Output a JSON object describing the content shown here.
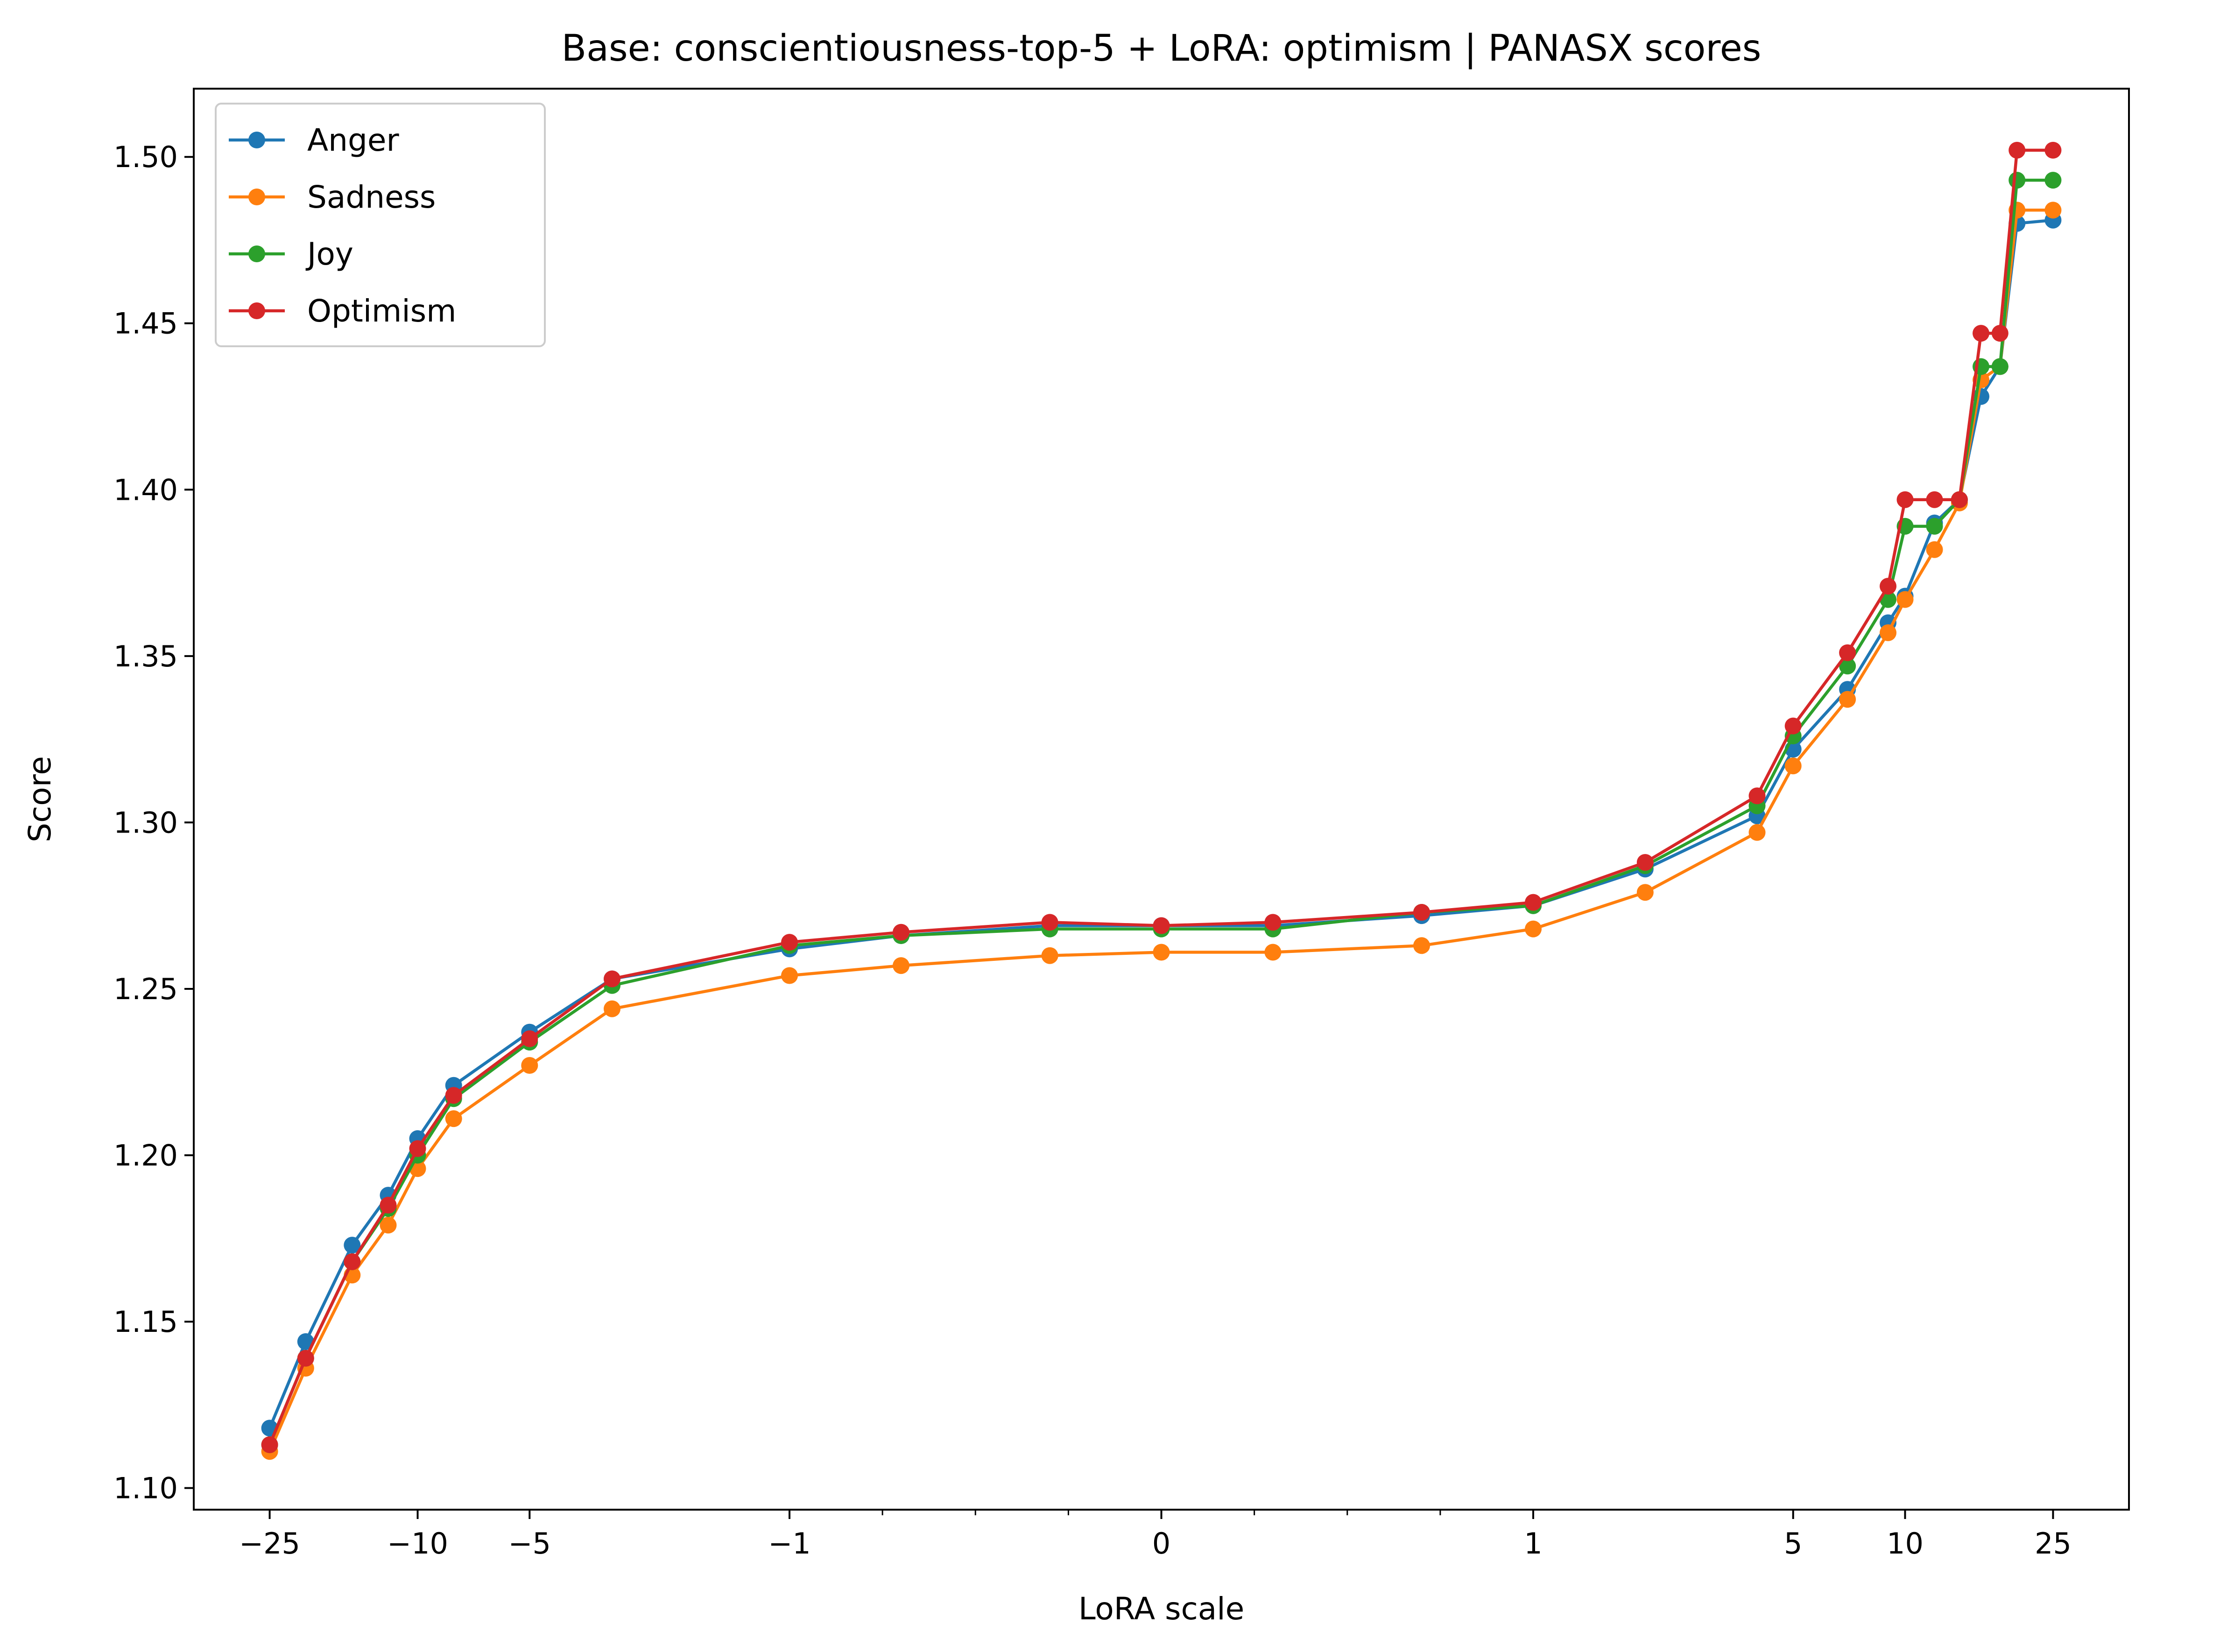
{
  "chart_data": {
    "type": "line",
    "title": "Base: conscientiousness-top-5 + LoRA: optimism | PANASX scores",
    "xlabel": "LoRA scale",
    "ylabel": "Score",
    "x_scale": "symlog",
    "x_linthresh": 1,
    "xlim": [
      -40,
      40
    ],
    "ylim": [
      1.0935,
      1.5205
    ],
    "yticks": [
      "1.10",
      "1.15",
      "1.20",
      "1.25",
      "1.30",
      "1.35",
      "1.40",
      "1.45",
      "1.50"
    ],
    "yticks_values": [
      1.1,
      1.15,
      1.2,
      1.25,
      1.3,
      1.35,
      1.4,
      1.45,
      1.5
    ],
    "xticks": [
      "−25",
      "−10",
      "−5",
      "−1",
      "0",
      "1",
      "5",
      "10",
      "25"
    ],
    "xticks_values": [
      -25,
      -10,
      -5,
      -1,
      0,
      1,
      5,
      10,
      25
    ],
    "x_minor_ticks": [
      -0.75,
      -0.5,
      -0.25,
      0.25,
      0.5,
      0.75
    ],
    "grid": false,
    "legend_position": "top-left",
    "x": [
      -25,
      -20,
      -15,
      -12,
      -10,
      -8,
      -5,
      -3,
      -1,
      -0.7,
      -0.3,
      0,
      0.3,
      0.7,
      1,
      2,
      4,
      5,
      7,
      9,
      10,
      12,
      14,
      16,
      18,
      20,
      25
    ],
    "series": [
      {
        "name": "Anger",
        "color": "#1f77b4",
        "values": [
          1.118,
          1.144,
          1.173,
          1.188,
          1.205,
          1.221,
          1.237,
          1.253,
          1.262,
          1.266,
          1.269,
          1.269,
          1.269,
          1.272,
          1.275,
          1.286,
          1.302,
          1.322,
          1.34,
          1.36,
          1.368,
          1.39,
          1.397,
          1.428,
          1.437,
          1.48,
          1.481
        ]
      },
      {
        "name": "Sadness",
        "color": "#ff7f0e",
        "values": [
          1.111,
          1.136,
          1.164,
          1.179,
          1.196,
          1.211,
          1.227,
          1.244,
          1.254,
          1.257,
          1.26,
          1.261,
          1.261,
          1.263,
          1.268,
          1.279,
          1.297,
          1.317,
          1.337,
          1.357,
          1.367,
          1.382,
          1.396,
          1.433,
          1.437,
          1.484,
          1.484
        ]
      },
      {
        "name": "Joy",
        "color": "#2ca02c",
        "values": [
          1.113,
          1.139,
          1.168,
          1.184,
          1.2,
          1.217,
          1.234,
          1.251,
          1.263,
          1.266,
          1.268,
          1.268,
          1.268,
          1.273,
          1.275,
          1.287,
          1.305,
          1.326,
          1.347,
          1.367,
          1.389,
          1.389,
          1.397,
          1.437,
          1.437,
          1.493,
          1.493
        ]
      },
      {
        "name": "Optimism",
        "color": "#d62728",
        "values": [
          1.113,
          1.139,
          1.168,
          1.185,
          1.202,
          1.218,
          1.235,
          1.253,
          1.264,
          1.267,
          1.27,
          1.269,
          1.27,
          1.273,
          1.276,
          1.288,
          1.308,
          1.329,
          1.351,
          1.371,
          1.397,
          1.397,
          1.397,
          1.447,
          1.447,
          1.502,
          1.502
        ]
      }
    ]
  }
}
